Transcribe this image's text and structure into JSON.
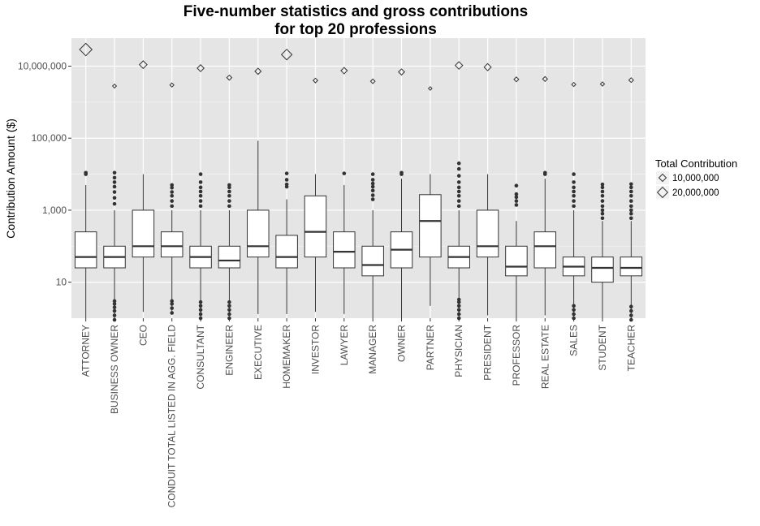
{
  "chart_data": {
    "type": "boxplot",
    "title": [
      "Five-number statistics and gross contributions",
      "for top 20 professions"
    ],
    "xlabel": "",
    "ylabel": "Contribution Amount ($)",
    "y_scale": "log10",
    "ylim": [
      1,
      60000000
    ],
    "y_ticks": [
      10,
      1000,
      100000,
      10000000
    ],
    "y_tick_labels": [
      "10",
      "1,000",
      "100,000",
      "10,000,000"
    ],
    "grid": true,
    "legend": {
      "title": "Total Contribution",
      "placement": "right",
      "entries": [
        {
          "label": "10,000,000",
          "value": 10000000
        },
        {
          "label": "20,000,000",
          "value": 20000000
        }
      ]
    },
    "categories": [
      "ATTORNEY",
      "BUSINESS OWNER",
      "CEO",
      "CONDUIT TOTAL LISTED IN AGG. FIELD",
      "CONSULTANT",
      "ENGINEER",
      "EXECUTIVE",
      "HOMEMAKER",
      "INVESTOR",
      "LAWYER",
      "MANAGER",
      "OWNER",
      "PARTNER",
      "PHYSICIAN",
      "PRESIDENT",
      "PROFESSOR",
      "REAL ESTATE",
      "SALES",
      "STUDENT",
      "TEACHER"
    ],
    "boxes": [
      {
        "low": 1,
        "q1": 25,
        "median": 50,
        "q3": 250,
        "high": 5000,
        "outliers": [
          10000,
          11000
        ]
      },
      {
        "low": 1,
        "q1": 25,
        "median": 50,
        "q3": 100,
        "high": 1000,
        "outliers": [
          0.9,
          1.2,
          1.6,
          2,
          2.5,
          3,
          1500,
          2200,
          3200,
          4500,
          6000,
          8000,
          11000
        ]
      },
      {
        "low": 1.5,
        "q1": 50,
        "median": 100,
        "q3": 1000,
        "high": 10000,
        "outliers": []
      },
      {
        "low": 1.5,
        "q1": 50,
        "median": 100,
        "q3": 250,
        "high": 1000,
        "outliers": [
          1.4,
          1.9,
          2.5,
          3,
          1300,
          1800,
          2500,
          3200,
          4200,
          5000
        ]
      },
      {
        "low": 1,
        "q1": 25,
        "median": 50,
        "q3": 100,
        "high": 1000,
        "outliers": [
          1,
          1.3,
          1.7,
          2.2,
          2.8,
          1300,
          1800,
          2500,
          3300,
          4300,
          6000,
          10000
        ]
      },
      {
        "low": 1,
        "q1": 25,
        "median": 40,
        "q3": 100,
        "high": 1000,
        "outliers": [
          1,
          1.3,
          1.7,
          2.2,
          2.8,
          1300,
          1800,
          2500,
          3300,
          4300,
          5000
        ]
      },
      {
        "low": 1.3,
        "q1": 50,
        "median": 100,
        "q3": 1000,
        "high": 85000,
        "outliers": []
      },
      {
        "low": 1.3,
        "q1": 25,
        "median": 50,
        "q3": 200,
        "high": 2000,
        "outliers": [
          4500,
          5200,
          7000,
          10500
        ]
      },
      {
        "low": 1.5,
        "q1": 50,
        "median": 250,
        "q3": 2500,
        "high": 10000,
        "outliers": []
      },
      {
        "low": 1.3,
        "q1": 25,
        "median": 70,
        "q3": 250,
        "high": 5000,
        "outliers": [
          10500
        ]
      },
      {
        "low": 1,
        "q1": 15,
        "median": 30,
        "q3": 100,
        "high": 1000,
        "outliers": [
          2000,
          2600,
          3500,
          4500,
          5500,
          7000,
          10000
        ]
      },
      {
        "low": 1,
        "q1": 25,
        "median": 80,
        "q3": 250,
        "high": 7500,
        "outliers": [
          10000,
          11000
        ]
      },
      {
        "low": 2.2,
        "q1": 50,
        "median": 500,
        "q3": 2700,
        "high": 10000,
        "outliers": []
      },
      {
        "low": 1,
        "q1": 25,
        "median": 50,
        "q3": 100,
        "high": 1000,
        "outliers": [
          1,
          1.3,
          1.7,
          2.2,
          2.8,
          3.3,
          1300,
          1800,
          2500,
          3300,
          4300,
          6000,
          9000,
          14000,
          20000
        ]
      },
      {
        "low": 1.2,
        "q1": 50,
        "median": 100,
        "q3": 1000,
        "high": 10000,
        "outliers": []
      },
      {
        "low": 1,
        "q1": 15,
        "median": 27,
        "q3": 100,
        "high": 500,
        "outliers": [
          1400,
          1800,
          2300,
          2800,
          4800
        ]
      },
      {
        "low": 1.2,
        "q1": 25,
        "median": 100,
        "q3": 250,
        "high": 7500,
        "outliers": [
          10000,
          11000
        ]
      },
      {
        "low": 1,
        "q1": 15,
        "median": 27,
        "q3": 50,
        "high": 1000,
        "outliers": [
          1,
          1.3,
          1.7,
          2.2,
          1300,
          1800,
          2500,
          3300,
          4300,
          6000,
          10000
        ]
      },
      {
        "low": 1,
        "q1": 10,
        "median": 25,
        "q3": 50,
        "high": 500,
        "outliers": [
          600,
          800,
          1000,
          1300,
          1800,
          2500,
          3300,
          4300,
          5200
        ]
      },
      {
        "low": 1,
        "q1": 15,
        "median": 25,
        "q3": 50,
        "high": 500,
        "outliers": [
          0.9,
          1.2,
          1.6,
          2.1,
          600,
          800,
          1000,
          1300,
          1800,
          2500,
          3300,
          4300,
          5300
        ]
      }
    ],
    "totals": [
      29000000,
      2800000,
      11000000,
      3000000,
      8800000,
      4800000,
      7200000,
      21000000,
      4000000,
      7500000,
      3800000,
      6900000,
      2400000,
      10500000,
      9400000,
      4300000,
      4400000,
      3100000,
      3200000,
      4100000
    ]
  }
}
